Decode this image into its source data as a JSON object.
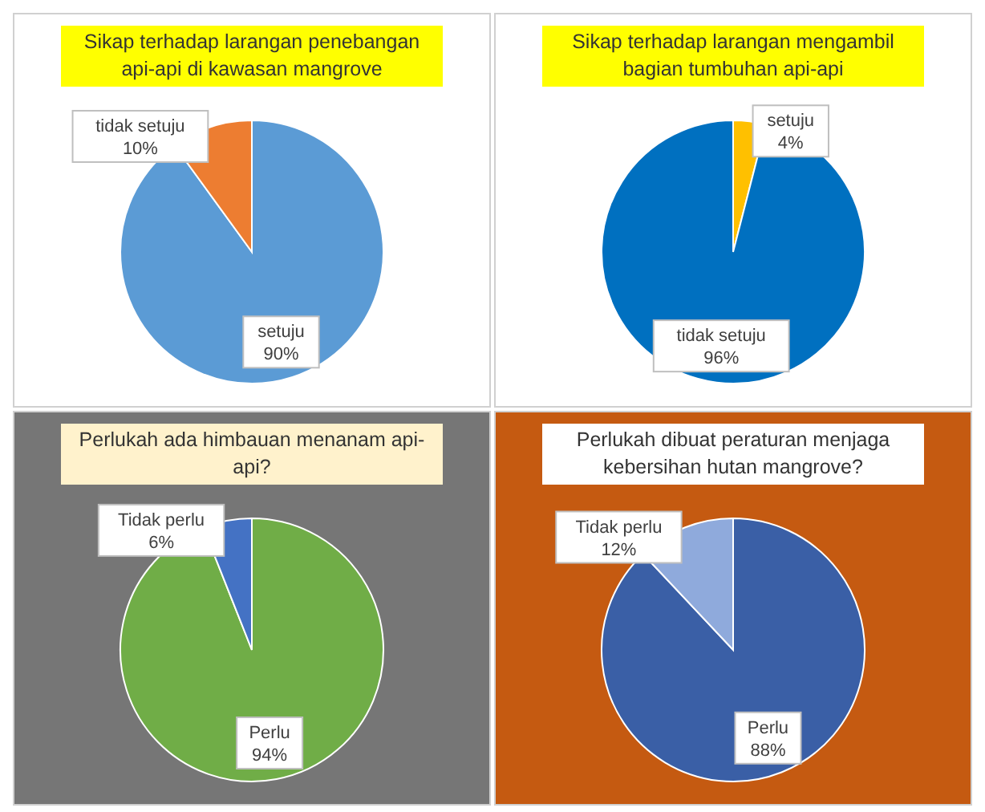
{
  "chart_data": [
    {
      "type": "pie",
      "title": "Sikap terhadap larangan penebangan api-api di kawasan mangrove",
      "categories": [
        "setuju",
        "tidak setuju"
      ],
      "values": [
        90,
        10
      ],
      "colors": [
        "#5b9bd5",
        "#ed7d31"
      ],
      "value_labels": [
        "90%",
        "10%"
      ]
    },
    {
      "type": "pie",
      "title": "Sikap terhadap larangan mengambil bagian tumbuhan api-api",
      "categories": [
        "setuju",
        "tidak setuju"
      ],
      "values": [
        4,
        96
      ],
      "colors": [
        "#ffc000",
        "#0070c0"
      ],
      "value_labels": [
        "4%",
        "96%"
      ]
    },
    {
      "type": "pie",
      "title": "Perlukah ada himbauan menanam api-api?",
      "categories": [
        "Perlu",
        "Tidak perlu"
      ],
      "values": [
        94,
        6
      ],
      "colors": [
        "#70ad47",
        "#4472c4"
      ],
      "value_labels": [
        "94%",
        "6%"
      ]
    },
    {
      "type": "pie",
      "title": "Perlukah dibuat peraturan menjaga kebersihan hutan mangrove?",
      "categories": [
        "Perlu",
        "Tidak perlu"
      ],
      "values": [
        88,
        12
      ],
      "colors": [
        "#3a5fa6",
        "#8faadc"
      ],
      "value_labels": [
        "88%",
        "12%"
      ]
    }
  ]
}
